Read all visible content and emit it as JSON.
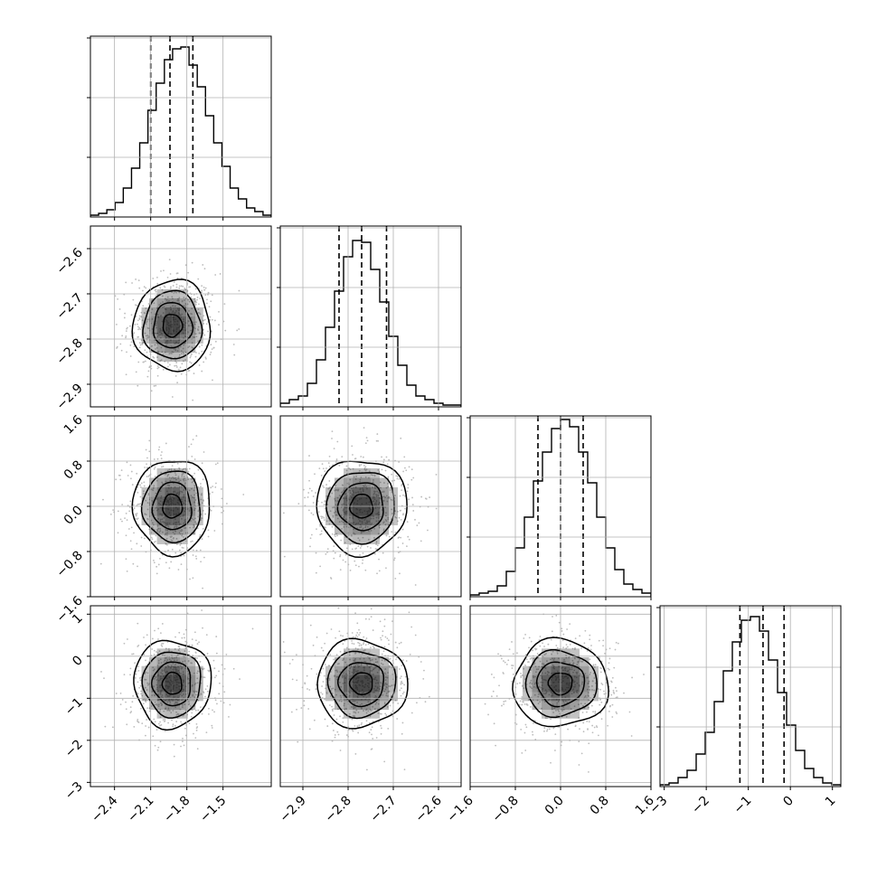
{
  "chart_data": {
    "type": "corner",
    "grid": true,
    "parameters": [
      {
        "range": [
          -2.6,
          -1.1
        ],
        "ticks": [
          -2.4,
          -2.1,
          -1.8,
          -1.5
        ],
        "tick_labels": [
          "−2.4",
          "−2.1",
          "−1.8",
          "−1.5"
        ],
        "quantiles": [
          -2.1,
          -1.94,
          -1.75
        ],
        "hist_counts": [
          0.01,
          0.02,
          0.04,
          0.08,
          0.16,
          0.27,
          0.41,
          0.59,
          0.74,
          0.87,
          0.93,
          0.94,
          0.84,
          0.72,
          0.56,
          0.41,
          0.28,
          0.16,
          0.1,
          0.05,
          0.03,
          0.01
        ]
      },
      {
        "range": [
          -2.95,
          -2.55
        ],
        "ticks": [
          -2.9,
          -2.8,
          -2.7,
          -2.6
        ],
        "tick_labels": [
          "−2.9",
          "−2.8",
          "−2.7",
          "−2.6"
        ],
        "quantiles": [
          -2.82,
          -2.77,
          -2.715
        ],
        "hist_counts": [
          0.02,
          0.04,
          0.06,
          0.13,
          0.26,
          0.44,
          0.64,
          0.83,
          0.92,
          0.91,
          0.76,
          0.58,
          0.39,
          0.23,
          0.12,
          0.06,
          0.04,
          0.02,
          0.01,
          0.01
        ]
      },
      {
        "range": [
          -1.6,
          1.6
        ],
        "ticks": [
          -1.6,
          -0.8,
          0.0,
          0.8,
          1.6
        ],
        "tick_labels": [
          "−1.6",
          "−0.8",
          "0.0",
          "0.8",
          "1.6"
        ],
        "quantiles": [
          -0.4,
          0.0,
          0.4
        ],
        "hist_counts": [
          0.01,
          0.02,
          0.03,
          0.06,
          0.14,
          0.27,
          0.44,
          0.64,
          0.8,
          0.93,
          0.98,
          0.94,
          0.8,
          0.63,
          0.44,
          0.27,
          0.15,
          0.07,
          0.04,
          0.02
        ]
      },
      {
        "range": [
          -3.1,
          1.2
        ],
        "ticks": [
          -3,
          -2,
          -1,
          0,
          1
        ],
        "tick_labels": [
          "−3",
          "−2",
          "−1",
          "0",
          "1"
        ],
        "quantiles": [
          -1.2,
          -0.65,
          -0.15
        ],
        "hist_counts": [
          0.01,
          0.02,
          0.05,
          0.09,
          0.18,
          0.3,
          0.47,
          0.64,
          0.8,
          0.92,
          0.94,
          0.86,
          0.7,
          0.52,
          0.34,
          0.2,
          0.1,
          0.05,
          0.02,
          0.01
        ]
      }
    ],
    "centers": [
      -1.92,
      -2.77,
      0.0,
      -0.65
    ],
    "sigmas": [
      0.16,
      0.05,
      0.42,
      0.52
    ],
    "contour_levels_sigma": [
      0.5,
      1.0,
      1.5,
      2.0
    ],
    "point_clouds": {
      "n_points": 650,
      "color": "#bdbdbd"
    },
    "colors": {
      "line": "#000000",
      "grid": "#b0b0b0",
      "density": "#000000"
    }
  }
}
